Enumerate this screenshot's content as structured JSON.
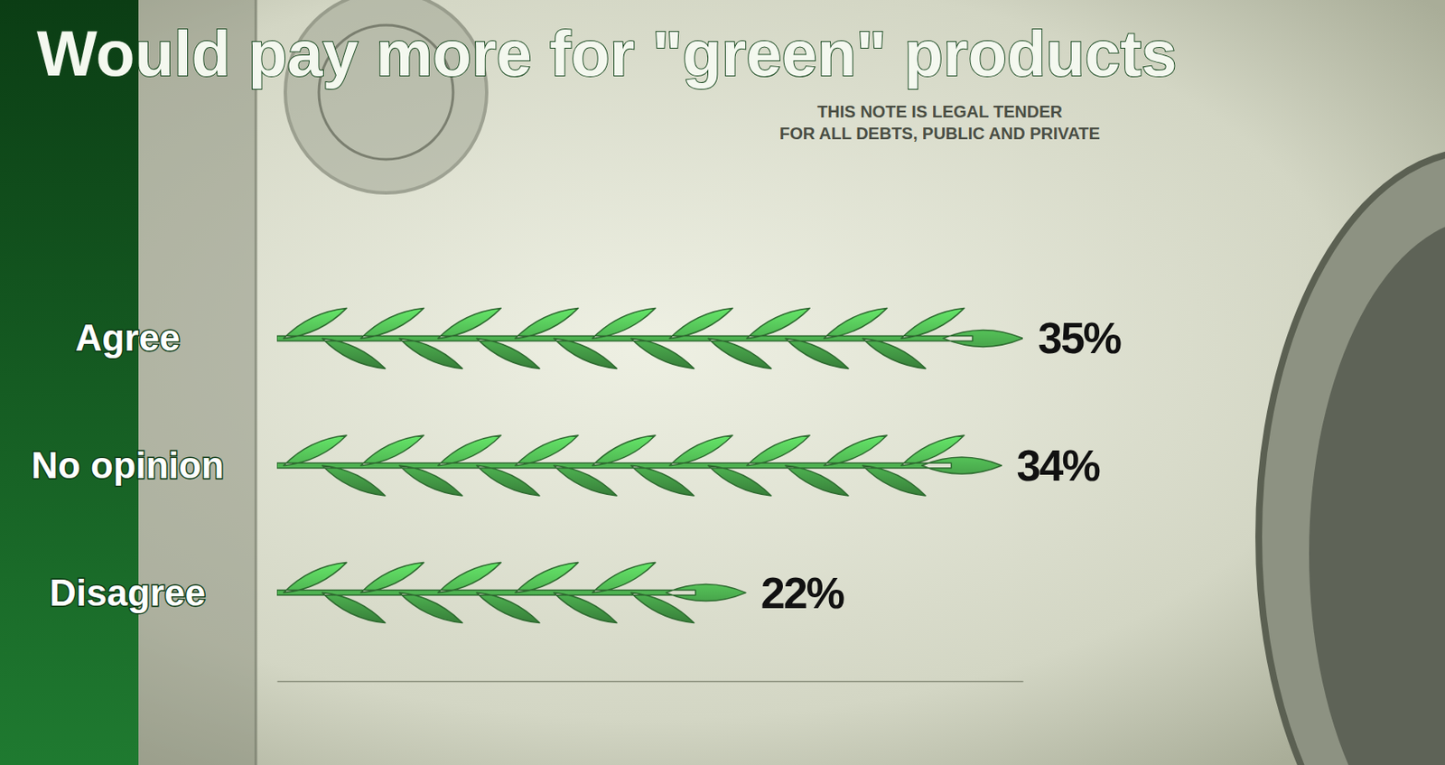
{
  "chart_data": {
    "type": "bar",
    "orientation": "horizontal",
    "title": "Would pay more for \"green\" products",
    "annotations": [
      "THIS NOTE IS LEGAL TENDER",
      "FOR ALL DEBTS, PUBLIC AND PRIVATE"
    ],
    "categories": [
      "Agree",
      "No opinion",
      "Disagree"
    ],
    "values": [
      35,
      34,
      22
    ],
    "value_labels": [
      "35%",
      "34%",
      "22%"
    ],
    "xlim": [
      0,
      35
    ],
    "data_labels": true,
    "tick_labels": false,
    "color": "#4cae4f"
  }
}
